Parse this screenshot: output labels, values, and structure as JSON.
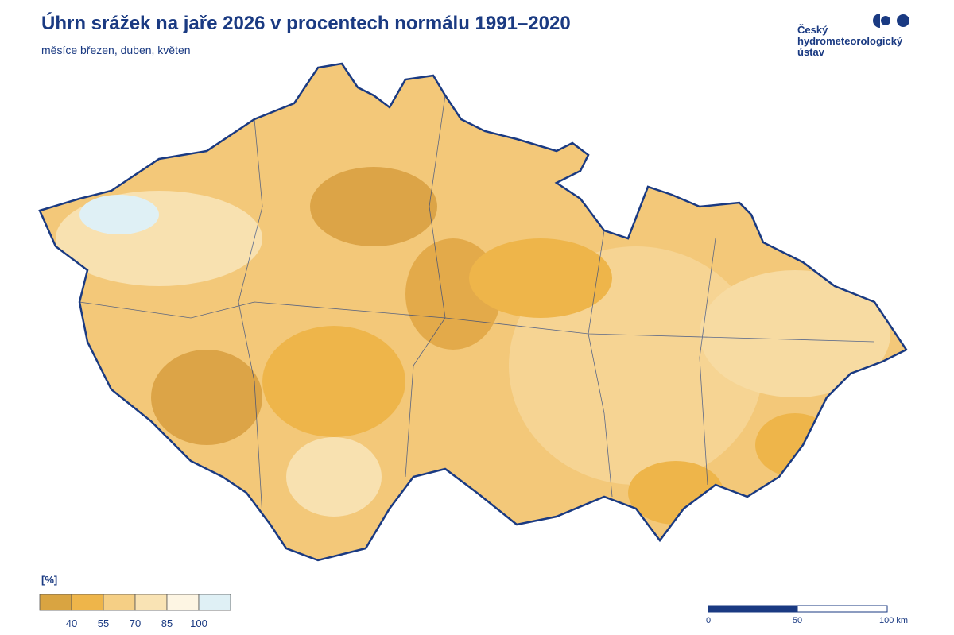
{
  "header": {
    "title": "Úhrn srážek na jaře 2026 v procentech normálu 1991–2020",
    "subtitle": "měsíce březen, duben, květen"
  },
  "logo": {
    "lines": [
      "Český",
      "hydrometeorologický",
      "ústav"
    ]
  },
  "legend": {
    "unit": "[%]",
    "labels": [
      40,
      55,
      70,
      85,
      100
    ],
    "colors": [
      "#d9a441",
      "#eeb54a",
      "#f5cf85",
      "#f9e3b4",
      "#fdf5e3",
      "#dff0f5"
    ]
  },
  "scale": {
    "labels": [
      "0",
      "50",
      "100 km"
    ]
  }
}
